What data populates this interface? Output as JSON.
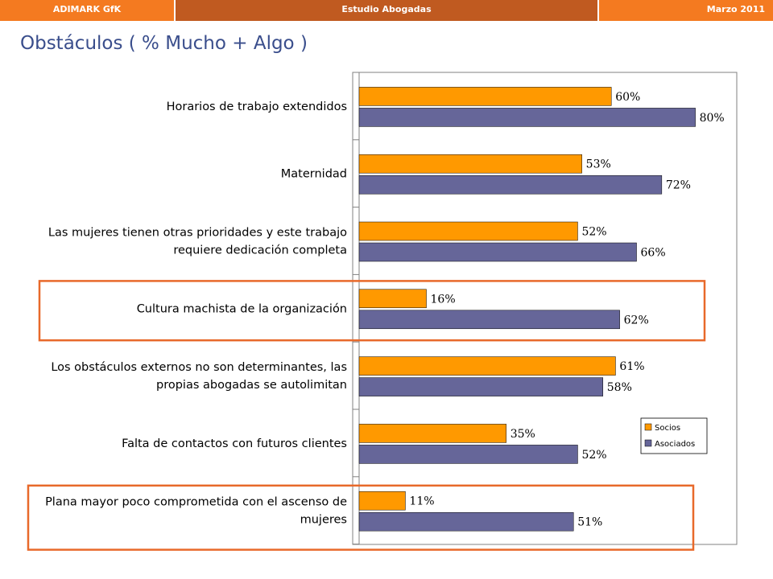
{
  "header": {
    "left": "ADIMARK GfK",
    "center": "Estudio Abogadas",
    "right": "Marzo 2011"
  },
  "page_title": "Obstáculos ( % Mucho + Algo )",
  "colors": {
    "header_bar": "#f47a20",
    "header_center": "#c05a20",
    "title": "#3a4e8c",
    "socios": "#ff9900",
    "asociados": "#666699",
    "highlight": "#e8692a"
  },
  "chart_data": {
    "type": "bar",
    "orientation": "horizontal",
    "title": "",
    "xlabel": "",
    "ylabel": "",
    "xlim": [
      0,
      100
    ],
    "grid": false,
    "legend_position": "right",
    "categories": [
      [
        "Horarios de trabajo extendidos"
      ],
      [
        "Maternidad"
      ],
      [
        "Las mujeres tienen otras prioridades y este trabajo",
        "requiere dedicación completa"
      ],
      [
        "Cultura machista de la organización"
      ],
      [
        "Los obstáculos externos no son determinantes, las",
        "propias abogadas se autolimitan"
      ],
      [
        "Falta de contactos con futuros clientes"
      ],
      [
        "Plana mayor poco comprometida con el ascenso de",
        "mujeres"
      ]
    ],
    "series": [
      {
        "name": "Socios",
        "values": [
          60,
          53,
          52,
          16,
          61,
          35,
          11
        ],
        "labels": [
          "60%",
          "53%",
          "52%",
          "16%",
          "61%",
          "35%",
          "11%"
        ]
      },
      {
        "name": "Asociados",
        "values": [
          80,
          72,
          66,
          62,
          58,
          52,
          51
        ],
        "labels": [
          "80%",
          "72%",
          "66%",
          "62%",
          "58%",
          "52%",
          "51%"
        ]
      }
    ],
    "highlighted_categories": [
      3,
      6
    ]
  }
}
